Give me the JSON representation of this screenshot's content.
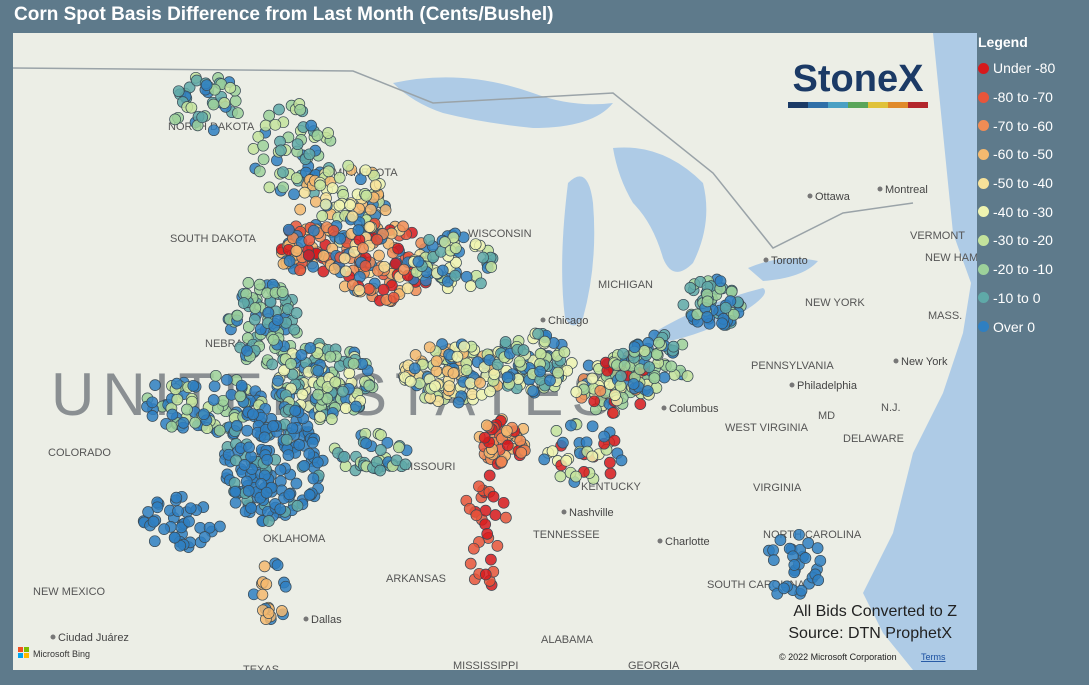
{
  "header": {
    "title": "Corn Spot Basis Difference from Last Month (Cents/Bushel)"
  },
  "legend": {
    "title": "Legend",
    "items": [
      {
        "label": "Under -80",
        "color": "#d7191c"
      },
      {
        "label": "-80 to -70",
        "color": "#e8553a"
      },
      {
        "label": "-70 to -60",
        "color": "#f08c55"
      },
      {
        "label": "-60 to -50",
        "color": "#f4b96f"
      },
      {
        "label": "-50 to -40",
        "color": "#f7e29a"
      },
      {
        "label": "-40 to -30",
        "color": "#eef3b0"
      },
      {
        "label": "-30 to -20",
        "color": "#c4e39c"
      },
      {
        "label": "-20 to -10",
        "color": "#9dd19a"
      },
      {
        "label": "-10 to 0",
        "color": "#5fa9a8"
      },
      {
        "label": "Over 0",
        "color": "#2f7fc1"
      }
    ]
  },
  "map": {
    "country_label": "UNITED STATES",
    "labels": [
      "NORTH DAKOTA",
      "MINNESOTA",
      "SOUTH DAKOTA",
      "WISCONSIN",
      "MICHIGAN",
      "NEBRASKA",
      "COLORADO",
      "MISSOURI",
      "KENTUCKY",
      "TENNESSEE",
      "OKLAHOMA",
      "ARKANSAS",
      "NEW MEXICO",
      "ALABAMA",
      "MISSISSIPPI",
      "GEORGIA",
      "TEXAS",
      "PENNSYLVANIA",
      "NEW YORK",
      "WEST VIRGINIA",
      "VIRGINIA",
      "NORTH CAROLINA",
      "SOUTH CAROLINA",
      "VERMONT",
      "NEW HAMPSHIRE",
      "MASS.",
      "DELAWARE",
      "N.J.",
      "MD"
    ],
    "cities": [
      "Ottawa",
      "Montreal",
      "Toronto",
      "Chicago",
      "Columbus",
      "Philadelphia",
      "New York",
      "Nashville",
      "Charlotte",
      "Dallas",
      "Ciudad Juárez"
    ]
  },
  "logo": "StoneX",
  "notes": [
    "All Bids Converted to Z",
    "Source: DTN ProphetX"
  ],
  "footer": {
    "copyright": "© 2022 Microsoft Corporation",
    "terms": "Terms",
    "bing": "Microsoft Bing"
  }
}
